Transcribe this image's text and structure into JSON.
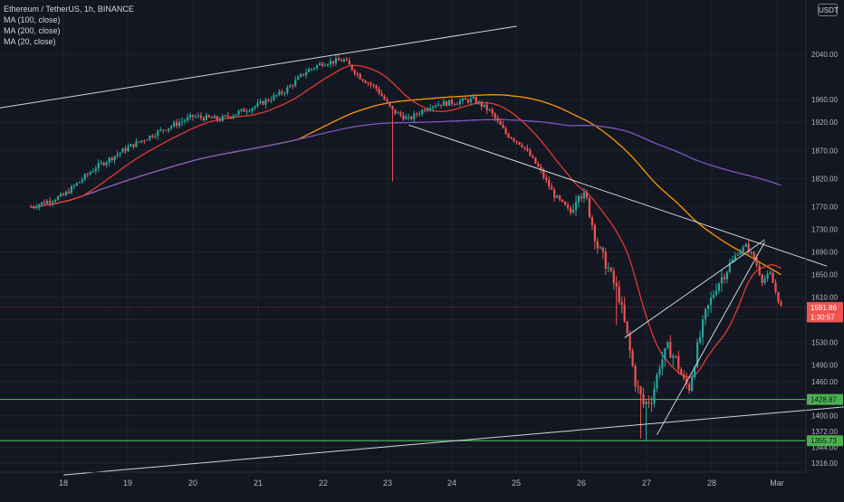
{
  "legend": {
    "symbol": "Ethereum / TetherUS, 1h, BINANCE",
    "ma1": "MA (100, close)",
    "ma2": "MA (200, close)",
    "ma3": "MA (20, close)"
  },
  "currency": "USDT",
  "colors": {
    "background": "#131722",
    "grid": "#1f2330",
    "up": "#26a69a",
    "down": "#ef5350",
    "ma100": "#ff9800",
    "ma200": "#7e57c2",
    "ma20": "#e53935",
    "support": "#4caf50",
    "trendline": "#d1d4dc",
    "price_badge": "#ef5350"
  },
  "chart_data": {
    "type": "candlestick",
    "x_ticks": [
      "18",
      "19",
      "20",
      "21",
      "22",
      "23",
      "24",
      "25",
      "26",
      "27",
      "28",
      "Mar"
    ],
    "y_ticks": [
      2040,
      1960,
      1920,
      1870,
      1820,
      1770,
      1730,
      1690,
      1650,
      1610,
      1570,
      1530,
      1490,
      1460,
      1400,
      1372,
      1344,
      1316
    ],
    "y_range": [
      1300,
      2130
    ],
    "price_labels": [
      {
        "label": "1591.86",
        "value": 1591.86,
        "kind": "last_price"
      },
      {
        "label": "1:30:57",
        "value": 1575,
        "kind": "countdown"
      },
      {
        "label": "1428.87",
        "value": 1428.87,
        "kind": "support"
      },
      {
        "label": "1355.73",
        "value": 1355.73,
        "kind": "support"
      }
    ],
    "horizontal_lines": [
      1428.87,
      1355.73
    ],
    "last_price": 1591.86
  }
}
